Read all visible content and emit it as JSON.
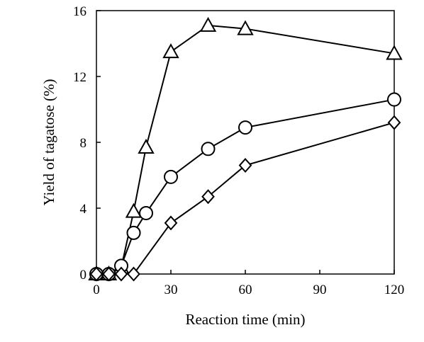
{
  "chart_data": {
    "type": "scatter",
    "xlabel": "Reaction time (min)",
    "ylabel": "Yield of tagatose (%)",
    "xlim": [
      0,
      120
    ],
    "ylim": [
      0,
      16
    ],
    "xticks": [
      0,
      30,
      60,
      90,
      120
    ],
    "yticks": [
      0,
      4,
      8,
      12,
      16
    ],
    "grid": false,
    "lines_connected": true,
    "series": [
      {
        "marker": "triangle",
        "x": [
          0,
          5,
          10,
          15,
          20,
          30,
          45,
          60,
          120
        ],
        "y": [
          0,
          0,
          0.4,
          3.8,
          7.7,
          13.5,
          15.1,
          14.9,
          13.4
        ]
      },
      {
        "marker": "circle",
        "x": [
          0,
          5,
          10,
          15,
          20,
          30,
          45,
          60,
          120
        ],
        "y": [
          0,
          0,
          0.5,
          2.5,
          3.7,
          5.9,
          7.6,
          8.9,
          10.6
        ]
      },
      {
        "marker": "diamond",
        "x": [
          0,
          5,
          10,
          15,
          30,
          45,
          60,
          120
        ],
        "y": [
          0,
          0,
          0,
          0,
          3.1,
          4.7,
          6.6,
          9.2
        ]
      }
    ]
  }
}
